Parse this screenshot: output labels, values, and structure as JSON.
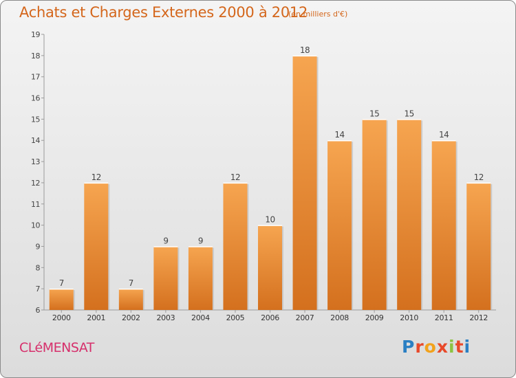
{
  "header": {
    "title": "Achats et Charges Externes 2000 à 2012",
    "unit": "(en milliers d'€)"
  },
  "footer": {
    "commune": "CLéMENSAT",
    "logo": "Proxiti"
  },
  "colors": {
    "title": "#d4661b",
    "bar_light": "#f6a550",
    "bar_dark": "#d4701e",
    "commune": "#d62f6b"
  },
  "chart_data": {
    "type": "bar",
    "title": "Achats et Charges Externes 2000 à 2012",
    "subtitle": "(en milliers d'€)",
    "xlabel": "",
    "ylabel": "",
    "categories": [
      "2000",
      "2001",
      "2002",
      "2003",
      "2004",
      "2005",
      "2006",
      "2007",
      "2008",
      "2009",
      "2010",
      "2011",
      "2012"
    ],
    "values": [
      7,
      12,
      7,
      9,
      9,
      12,
      10,
      18,
      14,
      15,
      15,
      14,
      12
    ],
    "ylim": [
      6,
      19
    ],
    "yticks": [
      6,
      7,
      8,
      9,
      10,
      11,
      12,
      13,
      14,
      15,
      16,
      17,
      18,
      19
    ],
    "grid": false,
    "data_labels": true
  }
}
